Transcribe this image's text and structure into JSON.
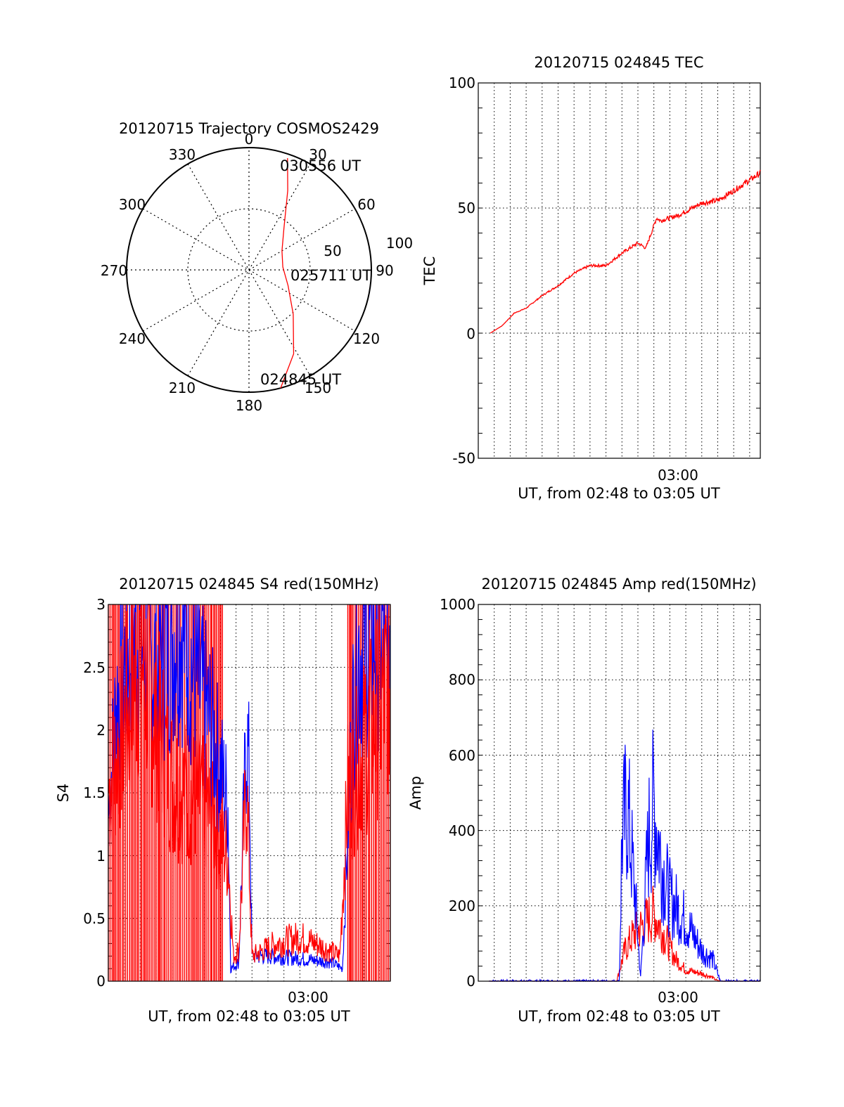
{
  "chart_data": [
    {
      "type": "polar",
      "title": "20120715 Trajectory COSMOS2429",
      "azimuth_labels": [
        "0",
        "30",
        "60",
        "90",
        "120",
        "150",
        "180",
        "210",
        "240",
        "270",
        "300",
        "330"
      ],
      "radial_labels": [
        "50",
        "100"
      ],
      "point_labels": [
        "030556 UT",
        "025711 UT",
        "024845 UT"
      ],
      "series": [
        {
          "name": "",
          "color": "#ff0000",
          "points": [
            {
              "az": 19,
              "zen": 87
            },
            {
              "az": 26,
              "zen": 65
            },
            {
              "az": 40,
              "zen": 40
            },
            {
              "az": 60,
              "zen": 28
            },
            {
              "az": 85,
              "zen": 25
            },
            {
              "az": 112,
              "zen": 31
            },
            {
              "az": 135,
              "zen": 46
            },
            {
              "az": 152,
              "zen": 70
            },
            {
              "az": 165,
              "zen": 90
            }
          ]
        }
      ]
    },
    {
      "type": "line",
      "title": "20120715 024845 TEC",
      "ylabel": "TEC",
      "xlabel": "UT, from 02:48 to 03:05 UT",
      "xtick_labels": [
        "03:00"
      ],
      "ytick_labels": [
        "-50",
        "0",
        "50",
        "100"
      ],
      "ylim": [
        -50,
        100
      ],
      "xlim": [
        "02:48:00",
        "03:05:40"
      ],
      "grid": true,
      "series": [
        {
          "name": "",
          "color": "#ff0000",
          "points": [
            [
              "02:48:45",
              0
            ],
            [
              "02:49:30",
              3
            ],
            [
              "02:50:15",
              8
            ],
            [
              "02:51:00",
              10
            ],
            [
              "02:52:00",
              15
            ],
            [
              "02:53:00",
              19
            ],
            [
              "02:54:00",
              24
            ],
            [
              "02:55:00",
              27
            ],
            [
              "02:56:00",
              27
            ],
            [
              "02:57:00",
              32
            ],
            [
              "02:58:00",
              36
            ],
            [
              "02:58:30",
              34
            ],
            [
              "02:59:10",
              46
            ],
            [
              "02:59:25",
              45
            ],
            [
              "03:00:30",
              47
            ],
            [
              "03:02:00",
              52
            ],
            [
              "03:03:00",
              53
            ],
            [
              "03:04:00",
              57
            ],
            [
              "03:05:40",
              64
            ]
          ]
        }
      ]
    },
    {
      "type": "line",
      "title": "20120715 024845 S4 red(150MHz)",
      "ylabel": "S4",
      "xlabel": "UT, from 02:48 to 03:05 UT",
      "xtick_labels": [
        "03:00"
      ],
      "ytick_labels": [
        "0",
        "0.5",
        "1",
        "1.5",
        "2",
        "2.5",
        "3"
      ],
      "ylim": [
        0,
        3
      ],
      "xlim": [
        "02:48:00",
        "03:05:40"
      ],
      "grid": true,
      "series": [
        {
          "name": "",
          "color": "#0000ff",
          "points": [
            [
              "02:48:00",
              1.3
            ],
            [
              "02:48:30",
              2.2
            ],
            [
              "02:49:30",
              2.8
            ],
            [
              "02:51:00",
              2.5
            ],
            [
              "02:52:30",
              2.9
            ],
            [
              "02:53:30",
              2.4
            ],
            [
              "02:54:30",
              2.0
            ],
            [
              "02:55:30",
              1.4
            ],
            [
              "02:55:40",
              0.1
            ],
            [
              "02:56:10",
              0.15
            ],
            [
              "02:56:40",
              2.0
            ],
            [
              "02:56:50",
              1.6
            ],
            [
              "02:57:00",
              0.2
            ],
            [
              "02:58:00",
              0.2
            ],
            [
              "03:00:00",
              0.18
            ],
            [
              "03:02:00",
              0.15
            ],
            [
              "03:02:40",
              0.1
            ],
            [
              "03:03:00",
              1.2
            ],
            [
              "03:03:30",
              2.6
            ],
            [
              "03:05:40",
              2.9
            ]
          ]
        },
        {
          "name": "",
          "color": "#ff0000",
          "points": [
            [
              "02:48:00",
              1.5
            ],
            [
              "02:50:00",
              2.6
            ],
            [
              "02:52:00",
              1.6
            ],
            [
              "02:54:00",
              1.4
            ],
            [
              "02:55:30",
              1.0
            ],
            [
              "02:55:50",
              0.2
            ],
            [
              "02:56:10",
              0.25
            ],
            [
              "02:56:40",
              1.6
            ],
            [
              "02:57:00",
              0.2
            ],
            [
              "02:58:30",
              0.3
            ],
            [
              "03:00:00",
              0.35
            ],
            [
              "03:01:00",
              0.3
            ],
            [
              "03:02:30",
              0.2
            ],
            [
              "03:03:00",
              1.5
            ],
            [
              "03:05:40",
              2.4
            ]
          ]
        }
      ]
    },
    {
      "type": "line",
      "title": "20120715 024845 Amp red(150MHz)",
      "ylabel": "Amp",
      "xlabel": "UT, from 02:48 to 03:05 UT",
      "xtick_labels": [
        "03:00"
      ],
      "ytick_labels": [
        "0",
        "200",
        "400",
        "600",
        "800",
        "1000"
      ],
      "ylim": [
        0,
        1000
      ],
      "xlim": [
        "02:48:00",
        "03:05:40"
      ],
      "grid": true,
      "series": [
        {
          "name": "",
          "color": "#ff0000",
          "points": [
            [
              "02:48:40",
              0
            ],
            [
              "02:56:40",
              0
            ],
            [
              "02:57:10",
              80
            ],
            [
              "02:57:40",
              120
            ],
            [
              "02:58:20",
              150
            ],
            [
              "02:59:00",
              180
            ],
            [
              "02:59:40",
              120
            ],
            [
              "03:00:20",
              60
            ],
            [
              "03:01:00",
              30
            ],
            [
              "03:02:00",
              20
            ],
            [
              "03:02:40",
              10
            ],
            [
              "03:03:00",
              0
            ],
            [
              "03:05:40",
              0
            ]
          ]
        },
        {
          "name": "",
          "color": "#0000ff",
          "points": [
            [
              "02:48:40",
              0
            ],
            [
              "02:56:50",
              0
            ],
            [
              "02:57:00",
              380
            ],
            [
              "02:57:20",
              470
            ],
            [
              "02:57:50",
              220
            ],
            [
              "02:58:10",
              10
            ],
            [
              "02:58:40",
              380
            ],
            [
              "02:59:00",
              470
            ],
            [
              "02:59:30",
              310
            ],
            [
              "03:00:00",
              220
            ],
            [
              "03:01:00",
              160
            ],
            [
              "03:02:00",
              80
            ],
            [
              "03:02:40",
              60
            ],
            [
              "03:03:10",
              0
            ],
            [
              "03:05:40",
              0
            ]
          ]
        }
      ]
    }
  ]
}
